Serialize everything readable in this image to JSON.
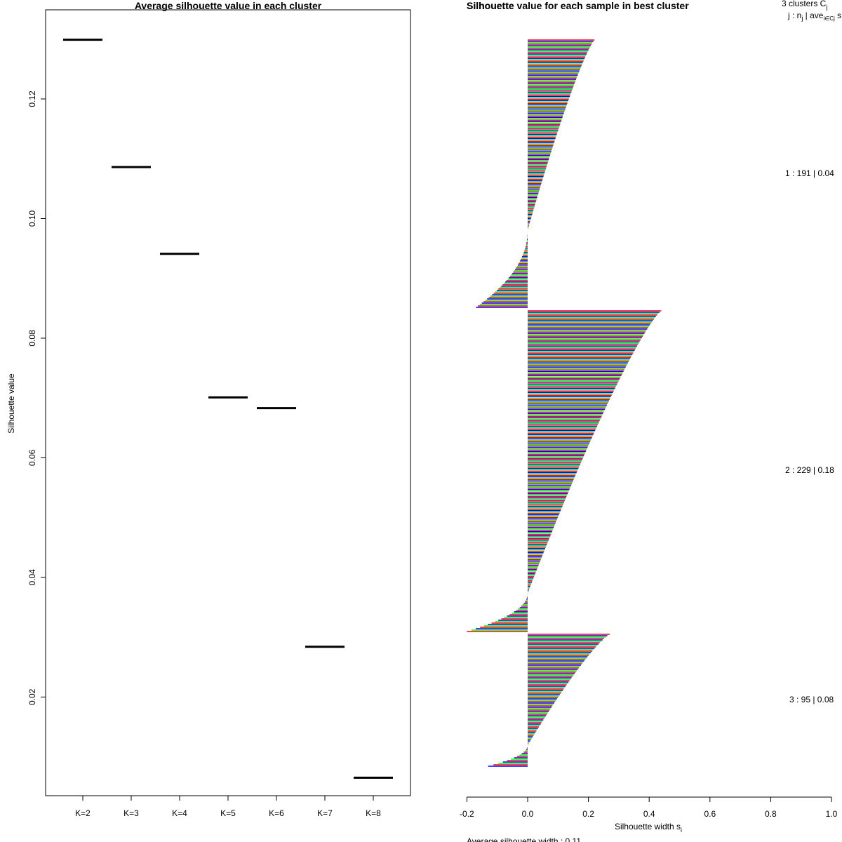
{
  "chart_data": [
    {
      "type": "line",
      "title": "Average silhouette value in each cluster",
      "xlabel": "",
      "ylabel": "Silhouette value",
      "categories": [
        "K=2",
        "K=3",
        "K=4",
        "K=5",
        "K=6",
        "K=7",
        "K=8"
      ],
      "values": [
        0.1299,
        0.1086,
        0.0941,
        0.0701,
        0.0683,
        0.0284,
        0.0065
      ],
      "ylim": [
        0.0035,
        0.1349
      ],
      "yticks": [
        "0.02",
        "0.04",
        "0.06",
        "0.08",
        "0.10",
        "0.12"
      ],
      "ytick_values": [
        0.02,
        0.04,
        0.06,
        0.08,
        0.1,
        0.12
      ]
    },
    {
      "type": "bar",
      "orientation": "horizontal",
      "title": "Silhouette value for each sample in best cluster",
      "overlapping_title": "Silhouette",
      "xlabel": "Silhouette width s",
      "xlabel_subscript": "i",
      "xlim": [
        -0.2,
        1.0
      ],
      "xticks": [
        "-0.2",
        "0.0",
        "0.2",
        "0.4",
        "0.6",
        "0.8",
        "1.0"
      ],
      "xtick_values": [
        -0.2,
        0.0,
        0.2,
        0.4,
        0.6,
        0.8,
        1.0
      ],
      "bar_colors": [
        "#ff0000",
        "#0000ff",
        "#00ff00"
      ],
      "legend_header": {
        "line1": "3 clusters C",
        "line1_subscript": "j",
        "line2": "j : n",
        "line2_sub": "j",
        "line2_rest": " | ave",
        "line2_sub2": "i∈Cj",
        "line2_end": " s"
      },
      "clusters": [
        {
          "id": 1,
          "n": 191,
          "label": "1 :  191  |  0.04",
          "max": 0.22,
          "min": -0.17,
          "zero_fraction": 0.71
        },
        {
          "id": 2,
          "n": 229,
          "label": "2 :  229  |  0.18",
          "max": 0.44,
          "min": -0.2,
          "zero_fraction": 0.88
        },
        {
          "id": 3,
          "n": 95,
          "label": "3 :  95  |  0.08",
          "max": 0.27,
          "min": -0.13,
          "zero_fraction": 0.84
        }
      ],
      "footer": "Average silhouette width : 0.11"
    }
  ]
}
